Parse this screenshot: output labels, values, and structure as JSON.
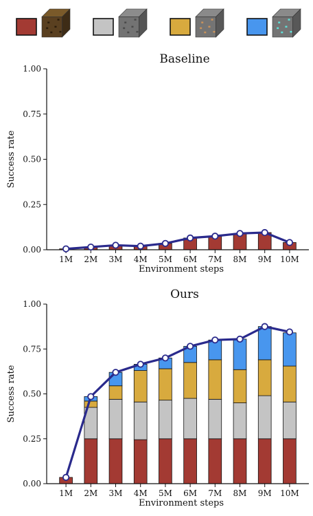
{
  "legend": {
    "items": [
      {
        "color": "#a33a33",
        "icon": "wood-block-icon"
      },
      {
        "color": "#c4c4c4",
        "icon": "stone-block-icon"
      },
      {
        "color": "#d8aa3e",
        "icon": "iron-ore-block-icon"
      },
      {
        "color": "#4896ee",
        "icon": "diamond-ore-block-icon"
      }
    ]
  },
  "chart_data": [
    {
      "type": "bar",
      "title": "Baseline",
      "xlabel": "Environment steps",
      "ylabel": "Success rate",
      "ylim": [
        0,
        1.0
      ],
      "yticks": [
        "0.00",
        "0.25",
        "0.50",
        "0.75",
        "1.00"
      ],
      "categories": [
        "1M",
        "2M",
        "3M",
        "4M",
        "5M",
        "6M",
        "7M",
        "8M",
        "9M",
        "10M"
      ],
      "stacked": true,
      "series": [
        {
          "color": "#a33a33",
          "values": [
            0.005,
            0.015,
            0.025,
            0.02,
            0.035,
            0.065,
            0.075,
            0.09,
            0.095,
            0.04
          ]
        },
        {
          "color": "#c4c4c4",
          "values": [
            0,
            0,
            0,
            0,
            0,
            0,
            0,
            0,
            0,
            0
          ]
        },
        {
          "color": "#d8aa3e",
          "values": [
            0,
            0,
            0,
            0,
            0,
            0,
            0,
            0,
            0,
            0
          ]
        },
        {
          "color": "#4896ee",
          "values": [
            0,
            0,
            0,
            0,
            0,
            0,
            0,
            0,
            0,
            0
          ]
        }
      ],
      "line": {
        "color": "#2a2a8c",
        "values": [
          0.005,
          0.015,
          0.025,
          0.02,
          0.035,
          0.065,
          0.075,
          0.09,
          0.095,
          0.04
        ]
      },
      "grid": false
    },
    {
      "type": "bar",
      "title": "Ours",
      "xlabel": "Environment steps",
      "ylabel": "Success rate",
      "ylim": [
        0,
        1.0
      ],
      "yticks": [
        "0.00",
        "0.25",
        "0.50",
        "0.75",
        "1.00"
      ],
      "categories": [
        "1M",
        "2M",
        "3M",
        "4M",
        "5M",
        "6M",
        "7M",
        "8M",
        "9M",
        "10M"
      ],
      "stacked": true,
      "series": [
        {
          "color": "#a33a33",
          "values": [
            0.035,
            0.25,
            0.25,
            0.245,
            0.25,
            0.25,
            0.25,
            0.25,
            0.25,
            0.25
          ]
        },
        {
          "color": "#c4c4c4",
          "values": [
            0,
            0.175,
            0.22,
            0.21,
            0.215,
            0.225,
            0.22,
            0.2,
            0.24,
            0.205
          ]
        },
        {
          "color": "#d8aa3e",
          "values": [
            0,
            0.035,
            0.075,
            0.175,
            0.175,
            0.2,
            0.22,
            0.185,
            0.2,
            0.2
          ]
        },
        {
          "color": "#4896ee",
          "values": [
            0,
            0.025,
            0.075,
            0.035,
            0.06,
            0.09,
            0.11,
            0.17,
            0.185,
            0.185
          ]
        }
      ],
      "line": {
        "color": "#2a2a8c",
        "values": [
          0.035,
          0.485,
          0.62,
          0.665,
          0.7,
          0.765,
          0.8,
          0.805,
          0.875,
          0.845
        ]
      },
      "grid": false
    }
  ]
}
